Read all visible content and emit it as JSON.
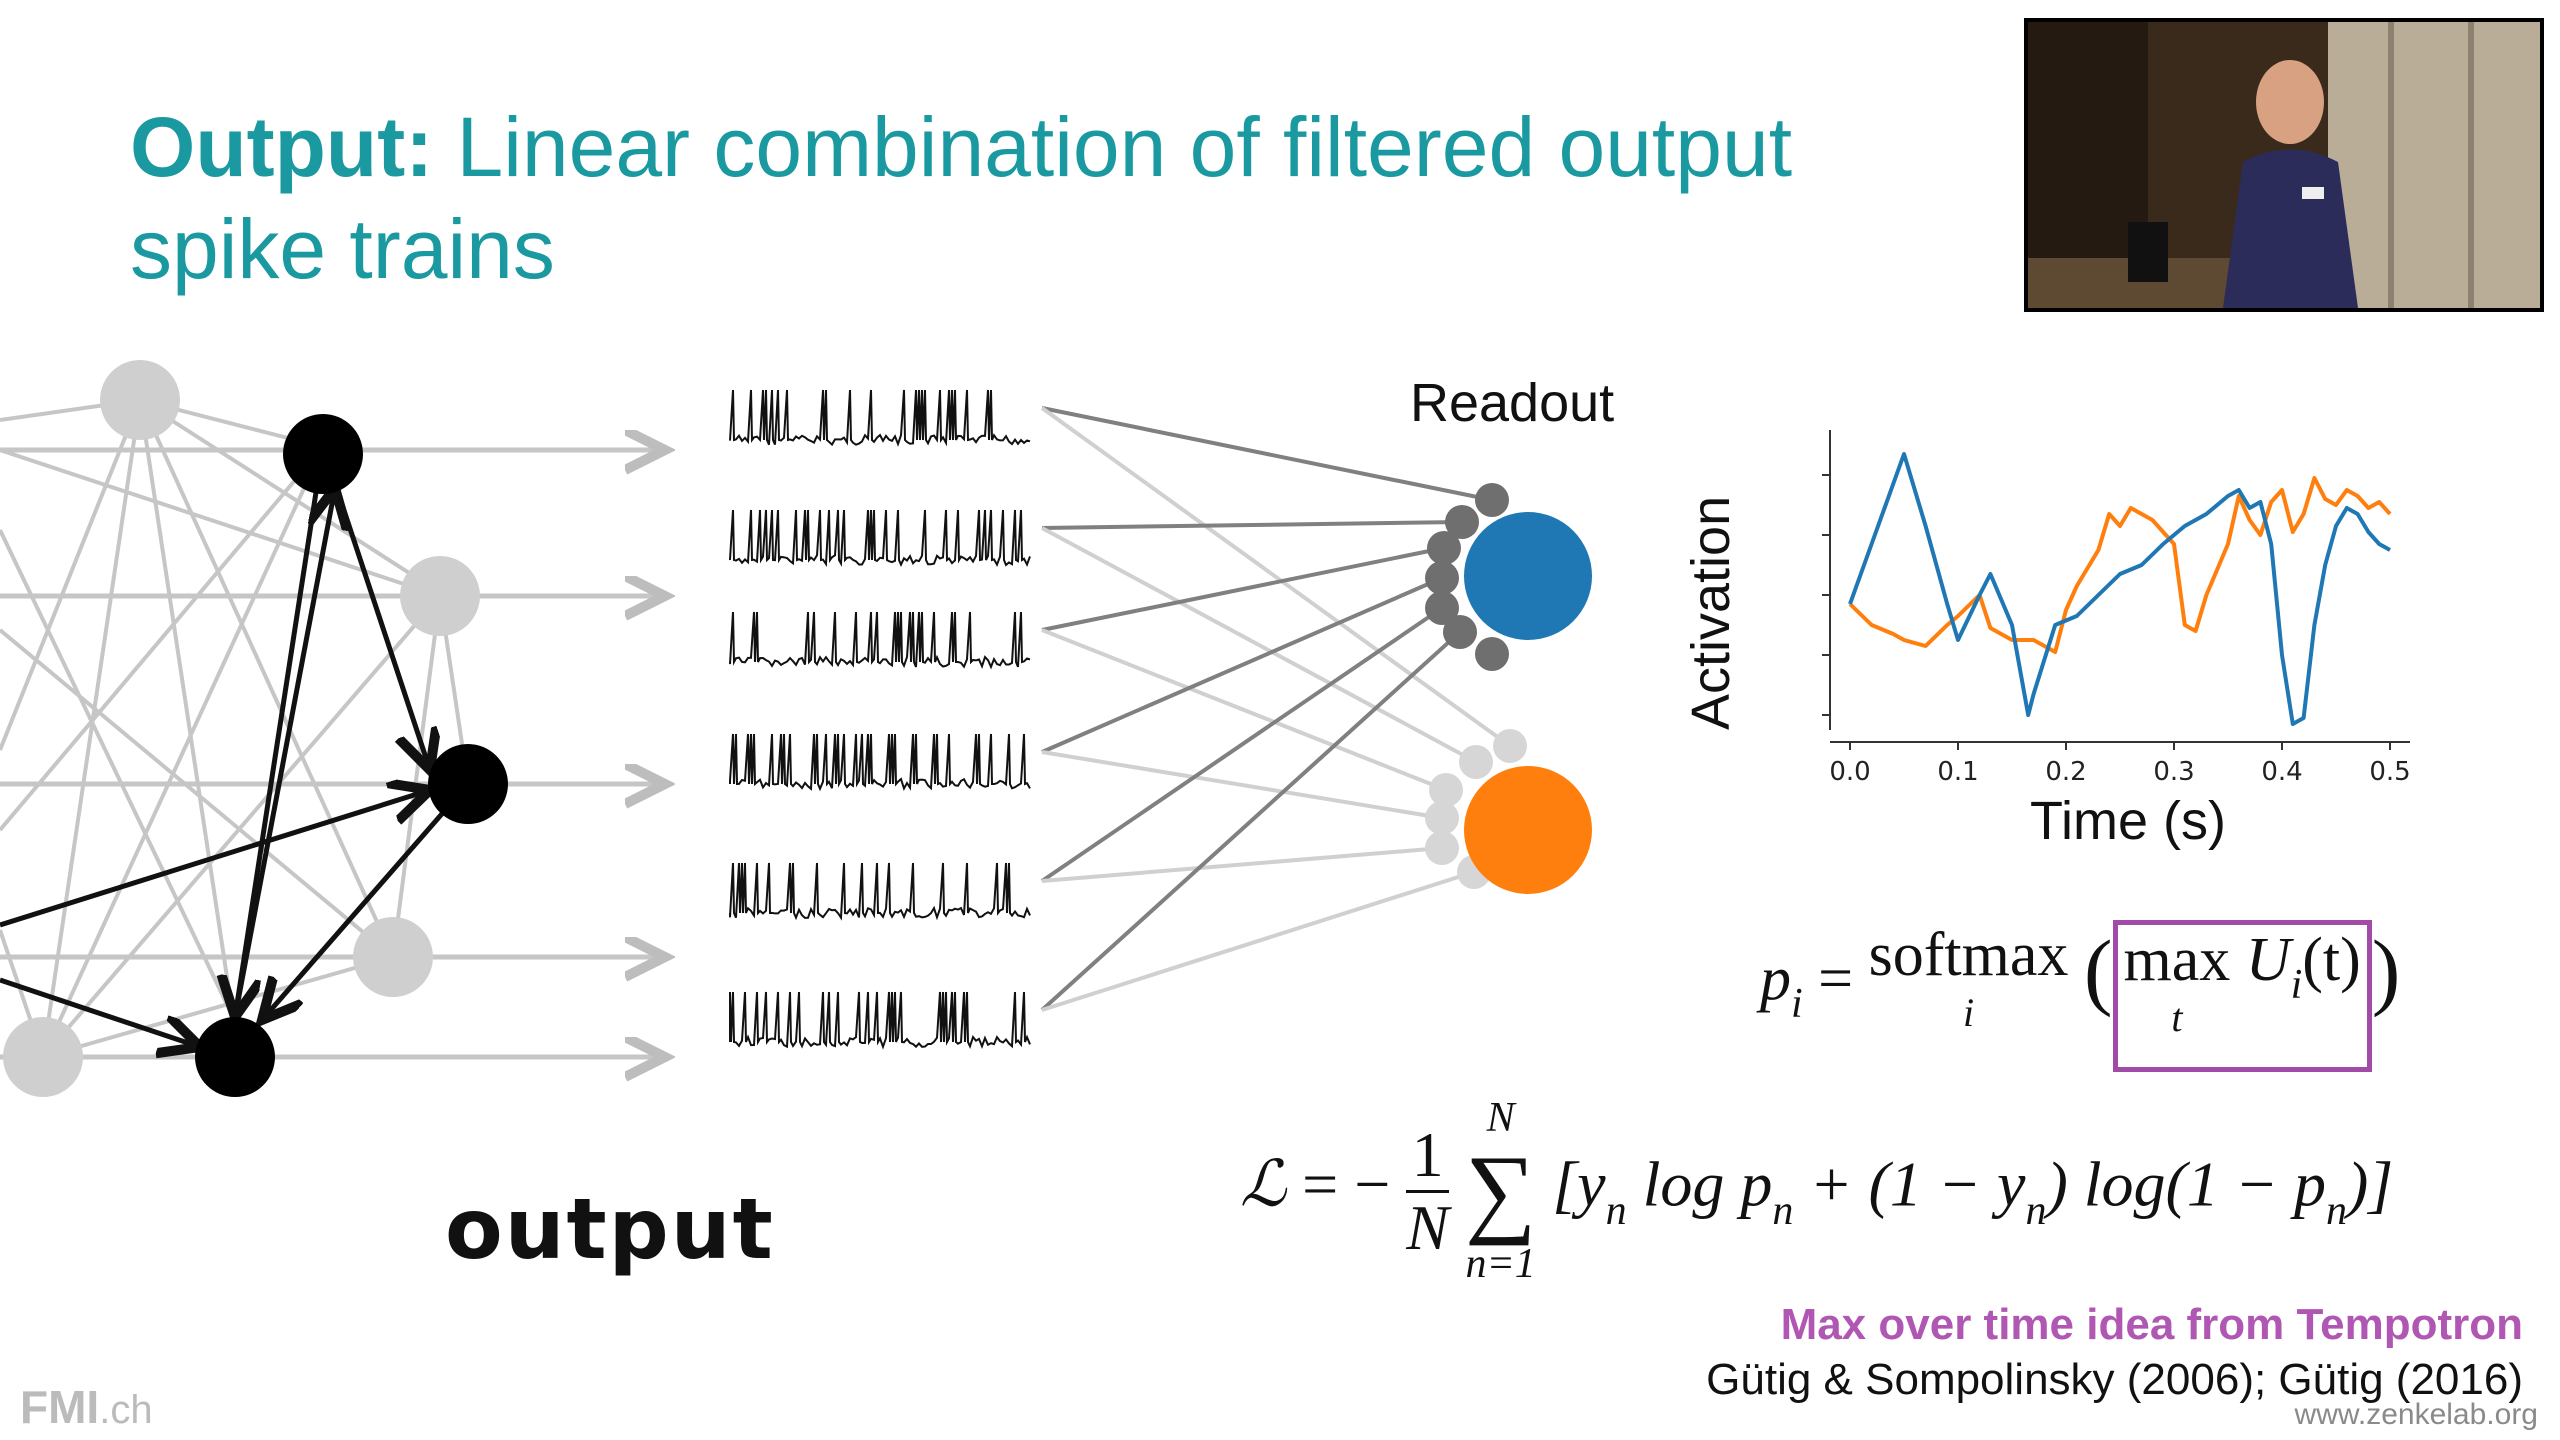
{
  "slide": {
    "title_bold": "Output:",
    "title_rest": "Linear combination of filtered output spike trains",
    "readout_label": "Readout",
    "output_label": "output",
    "citation_highlight": "Max over time idea from Tempotron",
    "citation_refs": "Gütig & Sompolinsky (2006); Gütig (2016)",
    "logo_text": "FMI",
    "logo_suffix": ".ch",
    "website": "www.zenkelab.org"
  },
  "formulas": {
    "p_lhs": "p",
    "p_lhs_sub": "i",
    "p_op": "softmax",
    "p_op_sub": "i",
    "p_max": "max",
    "p_max_sub": "t",
    "p_arg": "U",
    "p_arg_sub": "i",
    "p_arg_paren": "(t)",
    "loss_lhs": "ℒ",
    "loss_frac_num": "1",
    "loss_frac_den": "N",
    "loss_sum_top": "N",
    "loss_sum_bottom": "n=1",
    "loss_body": "[y",
    "loss_body_2": "log p",
    "loss_body_3": "+ (1 − y",
    "loss_body_4": ") log(1 − p",
    "loss_body_5": ")]",
    "loss_sub": "n"
  },
  "colors": {
    "title": "#1a9aa0",
    "readout_blue": "#1f77b4",
    "readout_orange": "#ff7f0e",
    "highlight_box": "#a24aa8",
    "citation_highlight": "#b057b3"
  },
  "chart_data": {
    "type": "line",
    "xlabel": "Time (s)",
    "ylabel": "Activation",
    "xlim": [
      0.0,
      0.5
    ],
    "ylim": [
      0,
      1
    ],
    "xticks": [
      "0.0",
      "0.1",
      "0.2",
      "0.3",
      "0.4",
      "0.5"
    ],
    "yticks_labeled": false,
    "series": [
      {
        "color": "#1f77b4",
        "x": [
          0.0,
          0.02,
          0.04,
          0.05,
          0.07,
          0.09,
          0.1,
          0.12,
          0.13,
          0.15,
          0.165,
          0.17,
          0.19,
          0.21,
          0.23,
          0.25,
          0.27,
          0.29,
          0.31,
          0.33,
          0.35,
          0.36,
          0.37,
          0.38,
          0.39,
          0.4,
          0.41,
          0.42,
          0.43,
          0.44,
          0.45,
          0.46,
          0.47,
          0.48,
          0.49,
          0.5
        ],
        "y": [
          0.42,
          0.62,
          0.82,
          0.92,
          0.68,
          0.42,
          0.3,
          0.45,
          0.52,
          0.35,
          0.05,
          0.12,
          0.35,
          0.38,
          0.45,
          0.52,
          0.55,
          0.62,
          0.68,
          0.72,
          0.78,
          0.8,
          0.74,
          0.76,
          0.62,
          0.25,
          0.02,
          0.04,
          0.35,
          0.55,
          0.68,
          0.74,
          0.72,
          0.66,
          0.62,
          0.6
        ]
      },
      {
        "color": "#ff7f0e",
        "x": [
          0.0,
          0.02,
          0.04,
          0.05,
          0.07,
          0.09,
          0.1,
          0.12,
          0.13,
          0.15,
          0.17,
          0.19,
          0.2,
          0.21,
          0.23,
          0.24,
          0.25,
          0.26,
          0.28,
          0.3,
          0.31,
          0.32,
          0.33,
          0.35,
          0.36,
          0.37,
          0.38,
          0.39,
          0.4,
          0.41,
          0.42,
          0.43,
          0.44,
          0.45,
          0.46,
          0.47,
          0.48,
          0.49,
          0.5
        ],
        "y": [
          0.42,
          0.35,
          0.32,
          0.3,
          0.28,
          0.35,
          0.38,
          0.45,
          0.34,
          0.3,
          0.3,
          0.26,
          0.4,
          0.48,
          0.6,
          0.72,
          0.68,
          0.74,
          0.7,
          0.62,
          0.35,
          0.33,
          0.45,
          0.62,
          0.78,
          0.7,
          0.65,
          0.76,
          0.8,
          0.66,
          0.72,
          0.84,
          0.77,
          0.75,
          0.8,
          0.78,
          0.74,
          0.76,
          0.72
        ]
      }
    ]
  }
}
